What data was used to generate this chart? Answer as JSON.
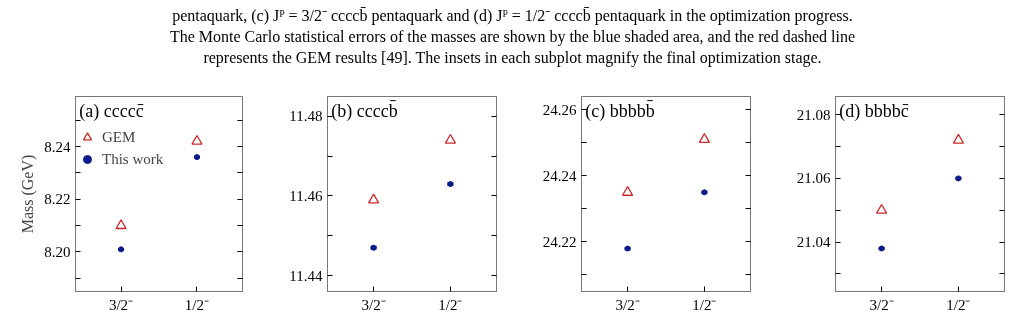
{
  "chart_data": [
    {
      "type": "scatter",
      "title": "(a) ccccc̄",
      "ylabel": "Mass (GeV)",
      "categories": [
        "3/2⁻",
        "1/2⁻"
      ],
      "ylim": [
        8.185,
        8.259
      ],
      "yticks": [
        {
          "value": 8.19,
          "label": null
        },
        {
          "value": 8.2,
          "label": "8.20"
        },
        {
          "value": 8.21,
          "label": null
        },
        8.22,
        {
          "value": 8.23,
          "label": null
        },
        8.24,
        {
          "value": 8.25,
          "label": null
        }
      ],
      "legend": "top left",
      "annotations": [
        "pentaquark, (c) Jᴾ = 3/2⁻ ccccb̄ pentaquark and (d) Jᴾ = 1/2⁻ ccccb̄ pentaquark in the optimization progress.",
        "The Monte Carlo statistical errors of the masses are shown by the blue shaded area, and the red dashed line",
        "represents the GEM results [49]. The insets in each subplot magnify the final optimization stage."
      ],
      "series": [
        {
          "name": "GEM",
          "color": "#cc2a2a",
          "marker": "triangle",
          "values": [
            8.21,
            8.242
          ]
        },
        {
          "name": "This work",
          "color": "#0a1a8a",
          "marker": "circle",
          "values": [
            8.201,
            8.236
          ],
          "errors": [
            0.0005,
            0.0005
          ]
        }
      ]
    },
    {
      "type": "scatter",
      "title": "(b) ccccb̄",
      "categories": [
        "3/2⁻",
        "1/2⁻"
      ],
      "ylim": [
        11.436,
        11.485
      ],
      "yticks": [
        11.44,
        {
          "value": 11.45,
          "label": null
        },
        11.46,
        {
          "value": 11.47,
          "label": null
        },
        11.48
      ],
      "series": [
        {
          "color": "#cc2a2a",
          "marker": "triangle",
          "values": [
            11.459,
            11.474
          ]
        },
        {
          "color": "#0a1a8a",
          "marker": "circle",
          "values": [
            11.447,
            11.463
          ],
          "errors": [
            0.0005,
            0.0005
          ]
        }
      ]
    },
    {
      "type": "scatter",
      "title": "(c) bbbbb̄",
      "categories": [
        "3/2⁻",
        "1/2⁻"
      ],
      "ylim": [
        24.205,
        24.264
      ],
      "yticks": [
        {
          "value": 24.21,
          "label": null
        },
        24.22,
        {
          "value": 24.23,
          "label": null
        },
        24.24,
        {
          "value": 24.25,
          "label": null
        },
        24.26
      ],
      "series": [
        {
          "color": "#cc2a2a",
          "marker": "triangle",
          "values": [
            24.235,
            24.251
          ]
        },
        {
          "color": "#0a1a8a",
          "marker": "circle",
          "values": [
            24.218,
            24.235
          ],
          "errors": [
            0.0005,
            0.0005
          ]
        }
      ]
    },
    {
      "type": "scatter",
      "title": "(d) bbbbc̄",
      "categories": [
        "3/2⁻",
        "1/2⁻"
      ],
      "ylim": [
        21.0245,
        21.0857
      ],
      "yticks": [
        {
          "value": 21.03,
          "label": null
        },
        21.04,
        {
          "value": 21.05,
          "label": null
        },
        21.06,
        {
          "value": 21.07,
          "label": null
        },
        21.08
      ],
      "series": [
        {
          "color": "#cc2a2a",
          "marker": "triangle",
          "values": [
            21.05,
            21.072
          ]
        },
        {
          "color": "#0a1a8a",
          "marker": "circle",
          "values": [
            21.038,
            21.06
          ],
          "errors": [
            0.0005,
            0.0005
          ]
        }
      ]
    }
  ]
}
